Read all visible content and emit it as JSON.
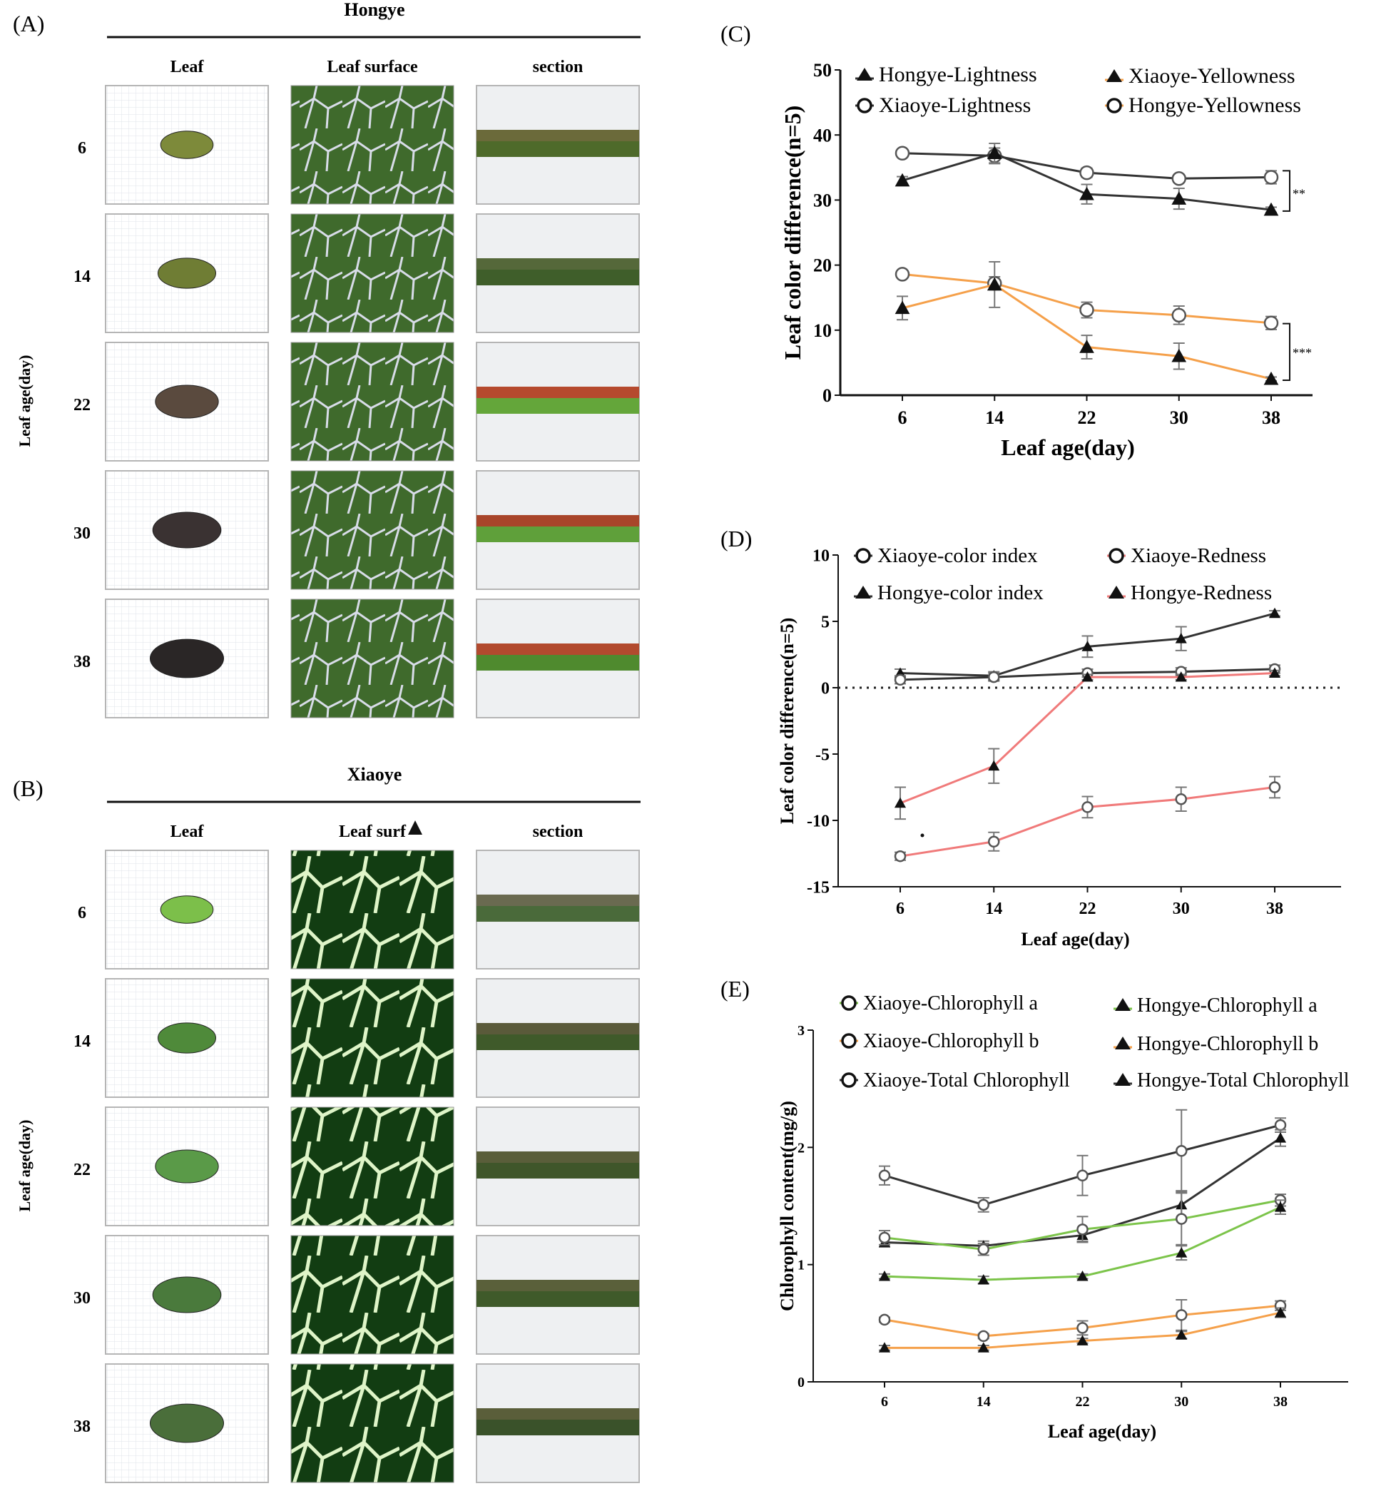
{
  "panels": {
    "A": {
      "label": "(A)",
      "cultivar": "Hongye",
      "columns": [
        "Leaf",
        "Leaf surface",
        "section"
      ],
      "row_axis_label": "Leaf age(day)",
      "rows": [
        "6",
        "14",
        "22",
        "30",
        "38"
      ]
    },
    "B": {
      "label": "(B)",
      "cultivar": "Xiaoye",
      "columns": [
        "Leaf",
        "Leaf surf",
        "section"
      ],
      "row_axis_label": "Leaf age(day)",
      "rows": [
        "6",
        "14",
        "22",
        "30",
        "38"
      ]
    }
  },
  "colors": {
    "black_series": "#333333",
    "orange_series": "#f5a04a",
    "red_series": "#f07a7a",
    "green_series": "#7cc44a",
    "axis": "#111111"
  },
  "chart_data": [
    {
      "id": "C",
      "panel_label": "(C)",
      "type": "line",
      "xlabel": "Leaf age(day)",
      "ylabel": "Leaf color difference(n=5)",
      "categories": [
        "6",
        "14",
        "22",
        "30",
        "38"
      ],
      "ylim": [
        0,
        50
      ],
      "yticks": [
        "0",
        "10",
        "20",
        "30",
        "40",
        "50"
      ],
      "legend": [
        "Hongye-Lightness",
        "Xiaoye-Yellowness",
        "Xiaoye-Lightness",
        "Hongye-Yellowness"
      ],
      "series": [
        {
          "name": "Xiaoye-Lightness",
          "marker": "circle",
          "color": "#333333",
          "values": [
            37.2,
            36.8,
            34.2,
            33.3,
            33.5
          ],
          "err": [
            0.5,
            1.2,
            0.7,
            0.6,
            1.0
          ]
        },
        {
          "name": "Hongye-Lightness",
          "marker": "triangle",
          "color": "#333333",
          "values": [
            33.0,
            37.2,
            30.9,
            30.2,
            28.5
          ],
          "err": [
            0.6,
            1.5,
            1.5,
            1.6,
            0.4
          ]
        },
        {
          "name": "Hongye-Yellowness",
          "marker": "circle",
          "color": "#f5a04a",
          "values": [
            18.6,
            17.2,
            13.1,
            12.3,
            11.1
          ],
          "err": [
            0.5,
            1.0,
            1.2,
            1.4,
            1.0
          ]
        },
        {
          "name": "Xiaoye-Yellowness",
          "marker": "triangle",
          "color": "#f5a04a",
          "values": [
            13.4,
            17.0,
            7.4,
            6.0,
            2.5
          ],
          "err": [
            1.8,
            3.5,
            1.8,
            2.0,
            0.3
          ]
        }
      ],
      "annotations": [
        "**",
        "***"
      ]
    },
    {
      "id": "D",
      "panel_label": "(D)",
      "type": "line",
      "xlabel": "Leaf age(day)",
      "ylabel": "Leaf color difference(n=5)",
      "categories": [
        "6",
        "14",
        "22",
        "30",
        "38"
      ],
      "ylim": [
        -15,
        10
      ],
      "yticks": [
        "-15",
        "-10",
        "-5",
        "0",
        "5",
        "10"
      ],
      "reference_line": 0,
      "legend": [
        "Xiaoye-color index",
        "Xiaoye-Redness",
        "Hongye-color index",
        "Hongye-Redness"
      ],
      "series": [
        {
          "name": "Hongye-color index",
          "marker": "triangle",
          "color": "#333333",
          "values": [
            1.1,
            0.9,
            3.1,
            3.7,
            5.6
          ],
          "err": [
            0.3,
            0.3,
            0.8,
            0.9,
            0.2
          ]
        },
        {
          "name": "Xiaoye-color index",
          "marker": "circle",
          "color": "#333333",
          "values": [
            0.6,
            0.8,
            1.1,
            1.2,
            1.4
          ],
          "err": [
            0.3,
            0.3,
            0.3,
            0.3,
            0.3
          ]
        },
        {
          "name": "Hongye-Redness",
          "marker": "triangle",
          "color": "#f07a7a",
          "values": [
            -8.7,
            -5.9,
            0.8,
            0.8,
            1.1
          ],
          "err": [
            1.2,
            1.3,
            0.2,
            0.2,
            0.2
          ]
        },
        {
          "name": "Xiaoye-Redness",
          "marker": "circle",
          "color": "#f07a7a",
          "values": [
            -12.7,
            -11.6,
            -9.0,
            -8.4,
            -7.5
          ],
          "err": [
            0.3,
            0.7,
            0.8,
            0.9,
            0.8
          ]
        }
      ]
    },
    {
      "id": "E",
      "panel_label": "(E)",
      "type": "line",
      "xlabel": "Leaf age(day)",
      "ylabel": "Chlorophyll content(mg/g)",
      "categories": [
        "6",
        "14",
        "22",
        "30",
        "38"
      ],
      "ylim": [
        0,
        3
      ],
      "yticks": [
        "0",
        "1",
        "2",
        "3"
      ],
      "legend": [
        "Xiaoye-Chlorophyll a",
        "Hongye-Chlorophyll a",
        "Xiaoye-Chlorophyll b",
        "Hongye-Chlorophyll b",
        "Xiaoye-Total Chlorophyll",
        "Hongye-Total Chlorophyll"
      ],
      "series": [
        {
          "name": "Xiaoye-Total Chlorophyll",
          "marker": "circle",
          "color": "#333333",
          "values": [
            1.76,
            1.51,
            1.76,
            1.97,
            2.19
          ],
          "err": [
            0.08,
            0.06,
            0.17,
            0.35,
            0.06
          ]
        },
        {
          "name": "Hongye-Total Chlorophyll",
          "marker": "triangle",
          "color": "#333333",
          "values": [
            1.19,
            1.16,
            1.25,
            1.51,
            2.08
          ],
          "err": [
            0.04,
            0.04,
            0.05,
            0.12,
            0.07
          ]
        },
        {
          "name": "Xiaoye-Chlorophyll a",
          "marker": "circle",
          "color": "#7cc44a",
          "values": [
            1.23,
            1.13,
            1.3,
            1.39,
            1.55
          ],
          "err": [
            0.06,
            0.05,
            0.11,
            0.22,
            0.05
          ]
        },
        {
          "name": "Hongye-Chlorophyll a",
          "marker": "triangle",
          "color": "#7cc44a",
          "values": [
            0.9,
            0.87,
            0.9,
            1.1,
            1.49
          ],
          "err": [
            0.02,
            0.03,
            0.02,
            0.06,
            0.06
          ]
        },
        {
          "name": "Xiaoye-Chlorophyll b",
          "marker": "circle",
          "color": "#f5a04a",
          "values": [
            0.53,
            0.39,
            0.46,
            0.57,
            0.65
          ],
          "err": [
            0.02,
            0.02,
            0.06,
            0.13,
            0.04
          ]
        },
        {
          "name": "Hongye-Chlorophyll b",
          "marker": "triangle",
          "color": "#f5a04a",
          "values": [
            0.29,
            0.29,
            0.35,
            0.4,
            0.59
          ],
          "err": [
            0.02,
            0.02,
            0.02,
            0.03,
            0.04
          ]
        }
      ]
    }
  ]
}
